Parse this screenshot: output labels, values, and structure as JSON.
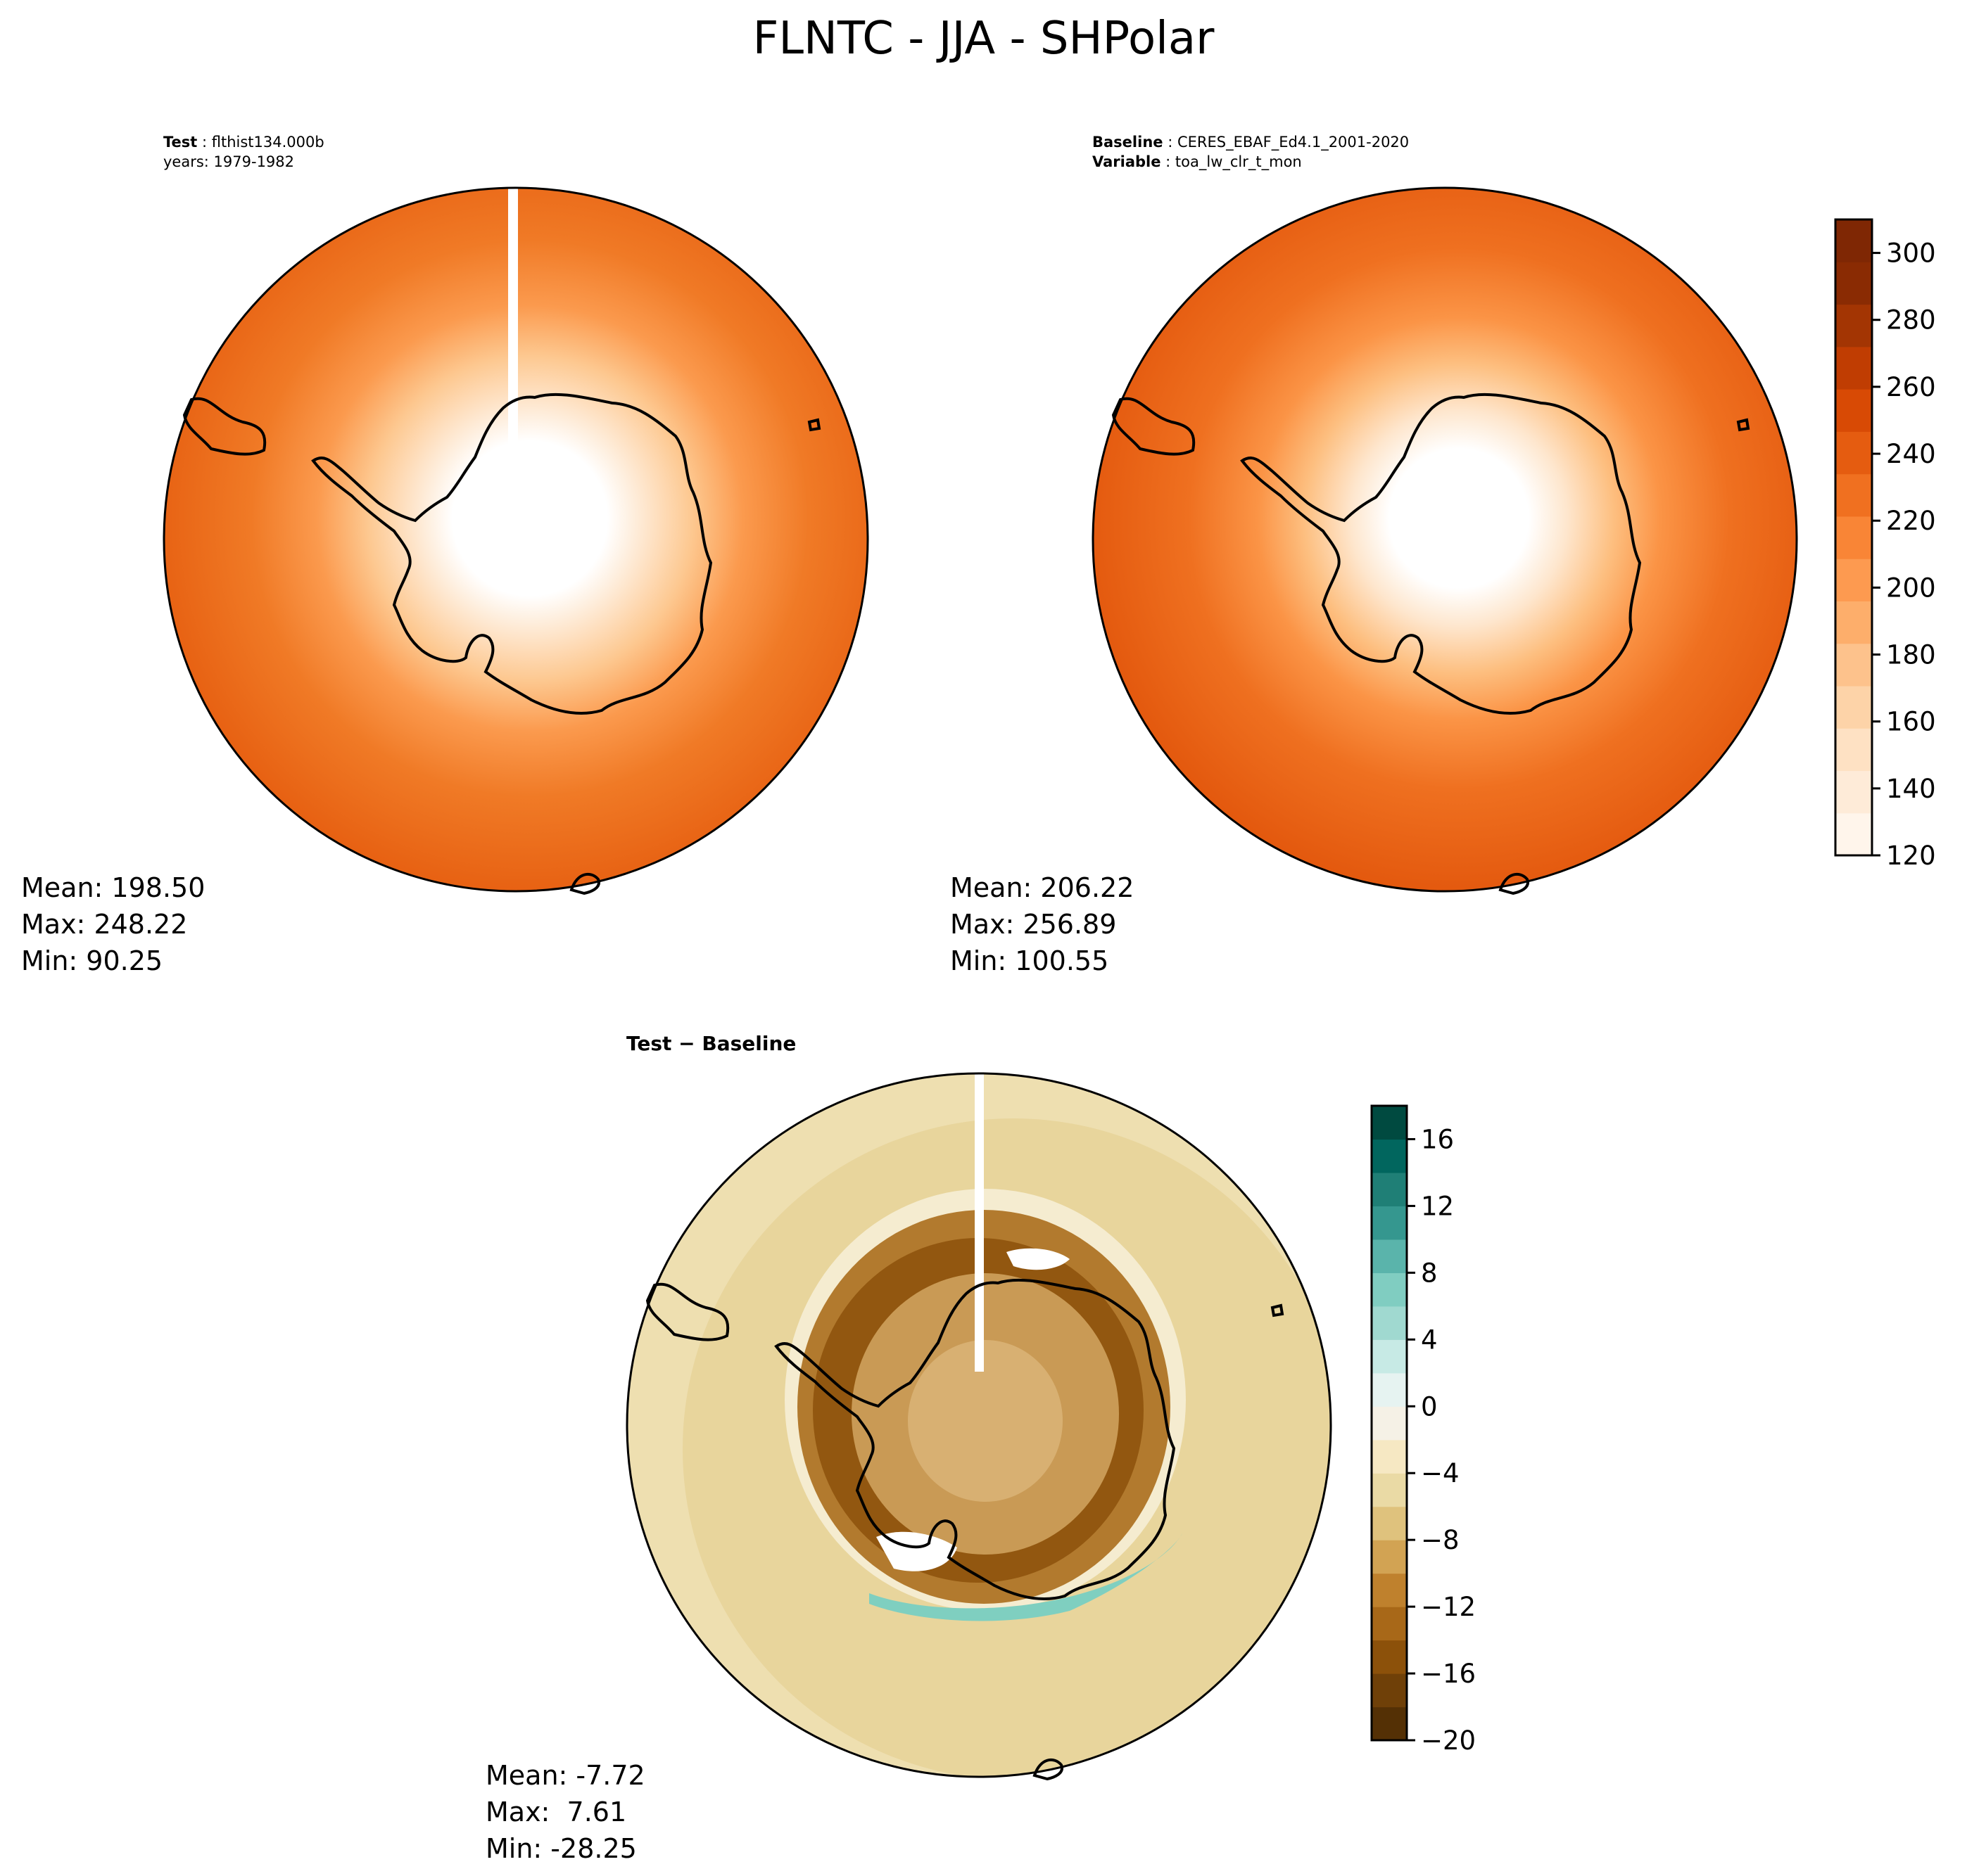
{
  "title": "FLNTC - JJA - SHPolar",
  "panels": {
    "test": {
      "label_key": "Test",
      "label_value": "flthist134.000b",
      "label_line2": "years: 1979-1982",
      "stats": {
        "mean": "Mean: 198.50",
        "max": "Max: 248.22",
        "min": "Min: 90.25"
      }
    },
    "baseline": {
      "label_key": "Baseline",
      "label_value": "CERES_EBAF_Ed4.1_2001-2020",
      "label2_key": "Variable",
      "label2_value": "toa_lw_clr_t_mon",
      "stats": {
        "mean": "Mean: 206.22",
        "max": "Max: 256.89",
        "min": "Min: 100.55"
      }
    },
    "diff": {
      "label": "Test − Baseline",
      "stats": {
        "mean": "Mean: -7.72",
        "max": "Max:  7.61",
        "min": "Min: -28.25"
      }
    }
  },
  "colorbars": {
    "main": {
      "range": [
        120,
        310
      ],
      "ticks": [
        "120",
        "140",
        "160",
        "180",
        "200",
        "220",
        "240",
        "260",
        "280",
        "300"
      ],
      "tick_values": [
        120,
        140,
        160,
        180,
        200,
        220,
        240,
        260,
        280,
        300
      ],
      "colors": [
        "#fff5eb",
        "#feebd8",
        "#fee1c3",
        "#fdd3a8",
        "#fdc28c",
        "#fdae6b",
        "#fd9a50",
        "#f98536",
        "#f07020",
        "#e55c10",
        "#d84a05",
        "#c03d02",
        "#a33503",
        "#8a2b03",
        "#7f2704"
      ]
    },
    "diff": {
      "range": [
        -20,
        18
      ],
      "ticks": [
        "16",
        "12",
        "8",
        "4",
        "0",
        "−4",
        "−8",
        "−12",
        "−16",
        "−20"
      ],
      "tick_values": [
        16,
        12,
        8,
        4,
        0,
        -4,
        -8,
        -12,
        -16,
        -20
      ],
      "colors": [
        "#543005",
        "#6f4008",
        "#8c510a",
        "#a86818",
        "#bf812d",
        "#d2a353",
        "#dfc27d",
        "#eadaa5",
        "#f6e8c3",
        "#f5f1e6",
        "#e6f3f1",
        "#c7eae5",
        "#a0d9d0",
        "#80cdc1",
        "#5ab4ab",
        "#35978f",
        "#1f7f76",
        "#01665e",
        "#004a40"
      ]
    }
  },
  "map_colors": {
    "ocean_outer": "#e65e10",
    "ice_white": "#ffffff",
    "continent_line": "#000000",
    "diff_background": "#e8d39c"
  }
}
